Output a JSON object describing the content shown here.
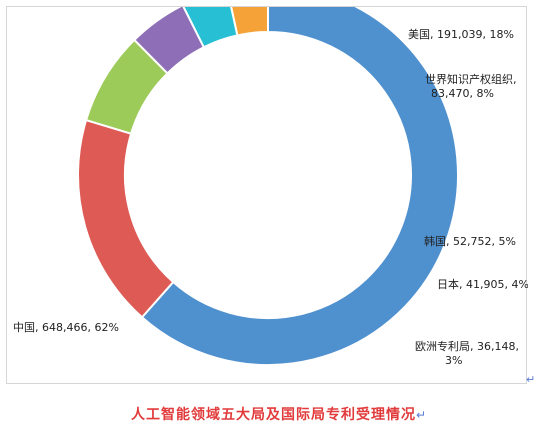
{
  "chart_data": {
    "type": "pie",
    "donut": true,
    "categories": [
      "中国",
      "美国",
      "世界知识产权组织",
      "韩国",
      "日本",
      "欧洲专利局"
    ],
    "values": [
      648466,
      191039,
      83470,
      52752,
      41905,
      36148
    ],
    "percents": [
      "62%",
      "18%",
      "8%",
      "5%",
      "4%",
      "3%"
    ],
    "labels": [
      [
        "中国, 648,466, 62%"
      ],
      [
        "美国, 191,039, 18%"
      ],
      [
        "世界知识产权组织,",
        "83,470, 8%"
      ],
      [
        "韩国, 52,752, 5%"
      ],
      [
        "日本, 41,905, 4%"
      ],
      [
        "欧洲专利局, 36,148,",
        "3%"
      ]
    ],
    "colors": [
      "#4f90cf",
      "#de5a55",
      "#9dcb59",
      "#8e6fb7",
      "#27bfd4",
      "#f5a339"
    ],
    "legend": "none"
  },
  "caption": "人工智能领域五大局及国际局专利受理情况",
  "para_mark": "↵"
}
